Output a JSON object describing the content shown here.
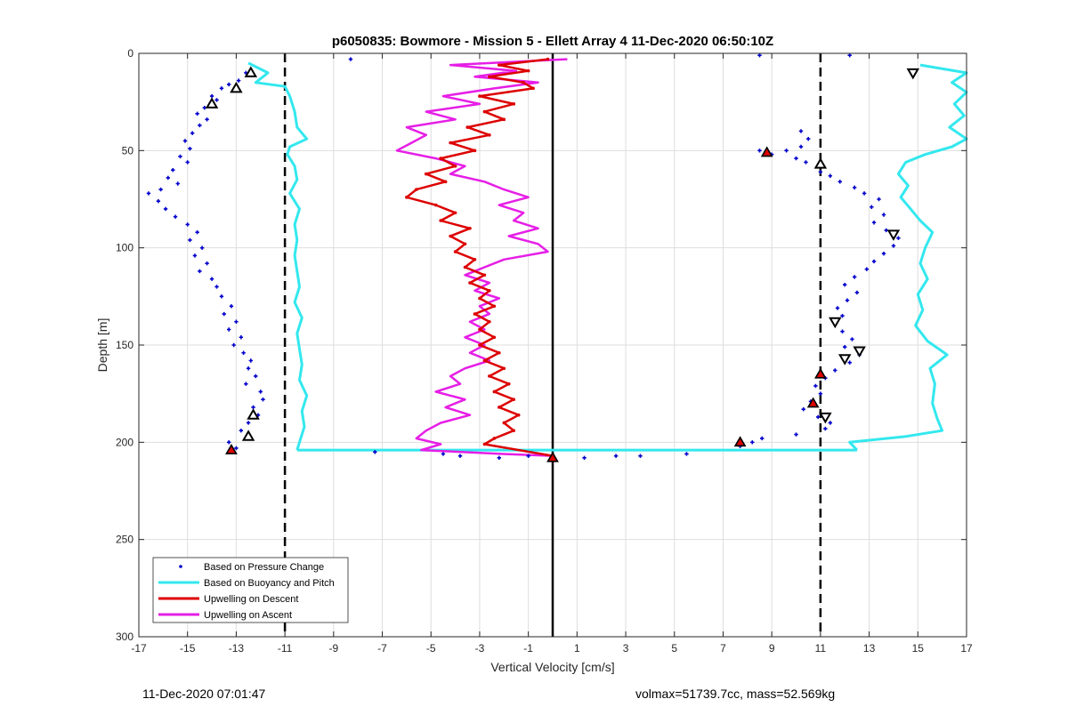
{
  "chart_data": {
    "type": "scatter",
    "title": "p6050835: Bowmore - Mission 5 - Ellett Array 4 11-Dec-2020 06:50:10Z",
    "xlabel": "Vertical Velocity [cm/s]",
    "ylabel": "Depth [m]",
    "xlim": [
      -17,
      17
    ],
    "ylim": [
      0,
      300
    ],
    "y_reversed": true,
    "xticks": [
      -17,
      -15,
      -13,
      -11,
      -9,
      -7,
      -5,
      -3,
      -1,
      1,
      3,
      5,
      7,
      9,
      11,
      13,
      15,
      17
    ],
    "yticks": [
      0,
      50,
      100,
      150,
      200,
      250,
      300
    ],
    "grid": true,
    "legend_position": "bottom-left",
    "reference_lines": [
      {
        "x": -11,
        "style": "dashed",
        "color": "#000000"
      },
      {
        "x": 11,
        "style": "dashed",
        "color": "#000000"
      },
      {
        "x": 0,
        "style": "solid",
        "color": "#000000"
      }
    ],
    "series": [
      {
        "name": "Based on Pressure Change",
        "kind": "scatter",
        "color": "#0000cc",
        "points": [
          [
            -12.6,
            10
          ],
          [
            -12.9,
            14
          ],
          [
            -13.3,
            16
          ],
          [
            -13.6,
            18
          ],
          [
            -14.0,
            22
          ],
          [
            -13.8,
            24
          ],
          [
            -14.3,
            28
          ],
          [
            -14.6,
            31
          ],
          [
            -14.2,
            34
          ],
          [
            -14.5,
            37
          ],
          [
            -14.8,
            41
          ],
          [
            -15.1,
            45
          ],
          [
            -14.9,
            49
          ],
          [
            -15.3,
            53
          ],
          [
            -15.0,
            56
          ],
          [
            -15.6,
            60
          ],
          [
            -15.8,
            64
          ],
          [
            -15.4,
            67
          ],
          [
            -16.1,
            70
          ],
          [
            -16.6,
            72
          ],
          [
            -16.2,
            76
          ],
          [
            -15.9,
            80
          ],
          [
            -15.5,
            84
          ],
          [
            -15.0,
            88
          ],
          [
            -14.6,
            92
          ],
          [
            -14.9,
            96
          ],
          [
            -14.4,
            100
          ],
          [
            -14.7,
            104
          ],
          [
            -14.2,
            108
          ],
          [
            -14.5,
            112
          ],
          [
            -14.0,
            116
          ],
          [
            -13.8,
            120
          ],
          [
            -13.6,
            125
          ],
          [
            -13.2,
            130
          ],
          [
            -13.5,
            134
          ],
          [
            -13.0,
            138
          ],
          [
            -13.3,
            142
          ],
          [
            -12.8,
            146
          ],
          [
            -13.1,
            150
          ],
          [
            -12.7,
            154
          ],
          [
            -12.4,
            158
          ],
          [
            -12.5,
            162
          ],
          [
            -12.2,
            166
          ],
          [
            -12.6,
            170
          ],
          [
            -12.0,
            174
          ],
          [
            -11.9,
            178
          ],
          [
            -12.3,
            182
          ],
          [
            -12.1,
            186
          ],
          [
            -12.5,
            190
          ],
          [
            -12.8,
            194
          ],
          [
            -12.4,
            198
          ],
          [
            -13.3,
            200
          ],
          [
            -13.0,
            203
          ],
          [
            -8.3,
            3
          ],
          [
            8.5,
            1
          ],
          [
            12.2,
            1
          ],
          [
            10.2,
            40
          ],
          [
            10.5,
            44
          ],
          [
            10.2,
            48
          ],
          [
            9.6,
            50
          ],
          [
            9.0,
            52
          ],
          [
            8.5,
            50
          ],
          [
            10.0,
            54
          ],
          [
            10.4,
            56
          ],
          [
            10.9,
            58
          ],
          [
            11.0,
            61
          ],
          [
            11.4,
            63
          ],
          [
            11.8,
            66
          ],
          [
            12.4,
            69
          ],
          [
            12.8,
            72
          ],
          [
            13.4,
            75
          ],
          [
            13.1,
            79
          ],
          [
            13.6,
            83
          ],
          [
            13.2,
            87
          ],
          [
            13.7,
            91
          ],
          [
            14.2,
            95
          ],
          [
            14.0,
            99
          ],
          [
            13.6,
            103
          ],
          [
            13.2,
            107
          ],
          [
            12.9,
            111
          ],
          [
            12.4,
            115
          ],
          [
            12.0,
            119
          ],
          [
            12.5,
            123
          ],
          [
            12.1,
            127
          ],
          [
            11.7,
            131
          ],
          [
            11.9,
            135
          ],
          [
            11.6,
            139
          ],
          [
            11.9,
            143
          ],
          [
            12.3,
            147
          ],
          [
            12.0,
            151
          ],
          [
            12.6,
            155
          ],
          [
            12.2,
            159
          ],
          [
            11.6,
            163
          ],
          [
            11.2,
            167
          ],
          [
            10.8,
            171
          ],
          [
            11.0,
            175
          ],
          [
            10.6,
            179
          ],
          [
            10.3,
            183
          ],
          [
            10.9,
            187
          ],
          [
            11.4,
            190
          ],
          [
            11.2,
            193
          ],
          [
            10.0,
            196
          ],
          [
            8.6,
            198
          ],
          [
            8.2,
            200
          ],
          [
            7.7,
            202
          ],
          [
            -7.3,
            205
          ],
          [
            -4.5,
            206
          ],
          [
            -3.8,
            207
          ],
          [
            -2.2,
            208
          ],
          [
            -1.0,
            207
          ],
          [
            1.3,
            208
          ],
          [
            2.6,
            207
          ],
          [
            3.6,
            207
          ],
          [
            5.5,
            206
          ]
        ]
      },
      {
        "name": "Based on Buoyancy and Pitch",
        "kind": "line",
        "color": "#33e8ee",
        "line_width": 3,
        "left_profile": [
          [
            -12.5,
            5
          ],
          [
            -11.7,
            10
          ],
          [
            -12.2,
            15
          ],
          [
            -11.0,
            17
          ],
          [
            -10.8,
            22
          ],
          [
            -10.6,
            30
          ],
          [
            -10.5,
            38
          ],
          [
            -10.1,
            44
          ],
          [
            -10.8,
            48
          ],
          [
            -10.9,
            52
          ],
          [
            -10.6,
            58
          ],
          [
            -10.5,
            65
          ],
          [
            -10.8,
            72
          ],
          [
            -10.4,
            80
          ],
          [
            -10.6,
            88
          ],
          [
            -10.5,
            96
          ],
          [
            -10.6,
            104
          ],
          [
            -10.5,
            112
          ],
          [
            -10.4,
            120
          ],
          [
            -10.6,
            128
          ],
          [
            -10.3,
            136
          ],
          [
            -10.5,
            144
          ],
          [
            -10.4,
            152
          ],
          [
            -10.3,
            160
          ],
          [
            -10.4,
            168
          ],
          [
            -10.1,
            176
          ],
          [
            -10.3,
            184
          ],
          [
            -10.2,
            192
          ],
          [
            -10.4,
            200
          ],
          [
            -10.5,
            204
          ]
        ],
        "bottom_connector": [
          [
            -10.5,
            204
          ],
          [
            12.5,
            204
          ]
        ],
        "right_profile": [
          [
            12.5,
            204
          ],
          [
            12.2,
            200
          ],
          [
            14.5,
            197
          ],
          [
            16.0,
            194
          ],
          [
            15.8,
            188
          ],
          [
            15.6,
            180
          ],
          [
            15.7,
            170
          ],
          [
            15.5,
            162
          ],
          [
            16.2,
            155
          ],
          [
            15.4,
            148
          ],
          [
            14.9,
            140
          ],
          [
            15.2,
            132
          ],
          [
            15.0,
            124
          ],
          [
            15.4,
            116
          ],
          [
            15.1,
            108
          ],
          [
            15.3,
            100
          ],
          [
            15.6,
            92
          ],
          [
            15.1,
            86
          ],
          [
            14.7,
            80
          ],
          [
            14.3,
            74
          ],
          [
            14.6,
            68
          ],
          [
            14.2,
            62
          ],
          [
            14.5,
            56
          ],
          [
            15.3,
            52
          ],
          [
            16.4,
            48
          ],
          [
            17.0,
            44
          ],
          [
            16.3,
            38
          ],
          [
            16.9,
            32
          ],
          [
            16.5,
            26
          ],
          [
            17.0,
            20
          ],
          [
            16.4,
            15
          ],
          [
            17.0,
            10
          ],
          [
            15.1,
            6
          ]
        ]
      },
      {
        "name": "Upwelling on Descent",
        "kind": "line",
        "color": "#dd0000",
        "line_width": 2.5,
        "points": [
          [
            -0.2,
            3
          ],
          [
            -2.2,
            6
          ],
          [
            -1.0,
            9
          ],
          [
            -2.6,
            12
          ],
          [
            -1.2,
            15
          ],
          [
            -0.8,
            18
          ],
          [
            -3.0,
            22
          ],
          [
            -1.6,
            26
          ],
          [
            -2.8,
            30
          ],
          [
            -2.0,
            34
          ],
          [
            -3.5,
            38
          ],
          [
            -2.6,
            42
          ],
          [
            -4.2,
            46
          ],
          [
            -3.2,
            50
          ],
          [
            -4.6,
            54
          ],
          [
            -4.0,
            58
          ],
          [
            -5.2,
            62
          ],
          [
            -4.4,
            66
          ],
          [
            -5.6,
            70
          ],
          [
            -6.0,
            74
          ],
          [
            -4.8,
            78
          ],
          [
            -4.0,
            82
          ],
          [
            -4.6,
            86
          ],
          [
            -3.4,
            90
          ],
          [
            -4.2,
            94
          ],
          [
            -3.6,
            98
          ],
          [
            -4.0,
            102
          ],
          [
            -3.2,
            106
          ],
          [
            -3.6,
            110
          ],
          [
            -2.8,
            114
          ],
          [
            -3.4,
            118
          ],
          [
            -2.6,
            122
          ],
          [
            -3.0,
            126
          ],
          [
            -2.4,
            130
          ],
          [
            -3.2,
            134
          ],
          [
            -2.6,
            138
          ],
          [
            -3.0,
            142
          ],
          [
            -2.4,
            146
          ],
          [
            -3.0,
            150
          ],
          [
            -2.2,
            154
          ],
          [
            -2.8,
            158
          ],
          [
            -2.0,
            162
          ],
          [
            -2.6,
            166
          ],
          [
            -1.8,
            170
          ],
          [
            -2.4,
            174
          ],
          [
            -1.6,
            178
          ],
          [
            -2.2,
            182
          ],
          [
            -1.4,
            186
          ],
          [
            -2.0,
            190
          ],
          [
            -1.6,
            194
          ],
          [
            -2.4,
            198
          ],
          [
            -2.8,
            201
          ],
          [
            0.0,
            207
          ]
        ]
      },
      {
        "name": "Upwelling on Ascent",
        "kind": "line",
        "color": "#e61ee6",
        "line_width": 2.5,
        "points": [
          [
            0.6,
            3
          ],
          [
            -4.2,
            6
          ],
          [
            -1.5,
            9
          ],
          [
            -3.2,
            12
          ],
          [
            -0.6,
            15
          ],
          [
            -2.4,
            18
          ],
          [
            -4.5,
            22
          ],
          [
            -3.0,
            26
          ],
          [
            -5.2,
            30
          ],
          [
            -4.0,
            34
          ],
          [
            -6.0,
            38
          ],
          [
            -5.2,
            42
          ],
          [
            -5.8,
            46
          ],
          [
            -6.4,
            50
          ],
          [
            -4.8,
            54
          ],
          [
            -3.6,
            58
          ],
          [
            -4.2,
            62
          ],
          [
            -2.8,
            66
          ],
          [
            -2.0,
            70
          ],
          [
            -1.0,
            74
          ],
          [
            -2.2,
            78
          ],
          [
            -1.2,
            82
          ],
          [
            -1.6,
            86
          ],
          [
            -0.6,
            90
          ],
          [
            -1.8,
            94
          ],
          [
            -0.6,
            98
          ],
          [
            -0.2,
            102
          ],
          [
            -2.0,
            106
          ],
          [
            -2.8,
            110
          ],
          [
            -3.6,
            114
          ],
          [
            -2.6,
            118
          ],
          [
            -3.2,
            122
          ],
          [
            -2.2,
            126
          ],
          [
            -3.0,
            130
          ],
          [
            -2.6,
            134
          ],
          [
            -3.4,
            138
          ],
          [
            -2.8,
            142
          ],
          [
            -3.6,
            146
          ],
          [
            -2.8,
            150
          ],
          [
            -3.4,
            154
          ],
          [
            -2.6,
            158
          ],
          [
            -3.6,
            162
          ],
          [
            -4.2,
            166
          ],
          [
            -3.8,
            170
          ],
          [
            -4.8,
            174
          ],
          [
            -3.6,
            178
          ],
          [
            -4.4,
            182
          ],
          [
            -3.4,
            186
          ],
          [
            -4.6,
            190
          ],
          [
            -5.2,
            194
          ],
          [
            -5.6,
            198
          ],
          [
            -4.6,
            201
          ],
          [
            -5.4,
            204
          ],
          [
            -2.0,
            206
          ],
          [
            0.0,
            207
          ]
        ]
      },
      {
        "name": "triangle_markers",
        "kind": "markers",
        "hollow_up": [
          [
            -12.4,
            10
          ],
          [
            -13.0,
            18
          ],
          [
            -14.0,
            26
          ],
          [
            11.0,
            57
          ],
          [
            -12.3,
            186
          ],
          [
            -12.5,
            197
          ]
        ],
        "hollow_down": [
          [
            14.8,
            10
          ],
          [
            14.0,
            93
          ],
          [
            11.6,
            138
          ],
          [
            12.6,
            153
          ],
          [
            12.0,
            157
          ],
          [
            11.2,
            187
          ]
        ],
        "filled_up": [
          [
            8.8,
            51
          ],
          [
            11.0,
            165
          ],
          [
            10.7,
            180
          ],
          [
            7.7,
            200
          ],
          [
            -13.2,
            204
          ],
          [
            0.0,
            208
          ]
        ]
      }
    ]
  },
  "footer": {
    "timestamp": "11-Dec-2020 07:01:47",
    "params": "volmax=51739.7cc, mass=52.569kg"
  }
}
